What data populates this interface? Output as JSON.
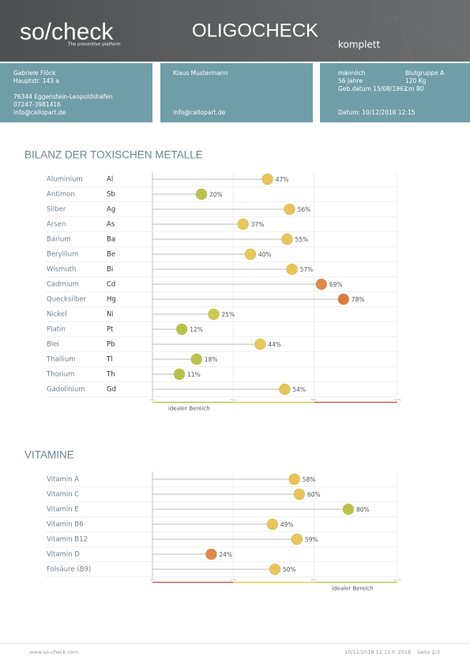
{
  "header": {
    "logo": "so/check",
    "tagline": "The preventive platform",
    "title": "OLIGOCHECK",
    "subtitle": "komplett"
  },
  "info": {
    "patient": [
      "Gabriele Flöck",
      "Hauptstr. 143 a",
      "76344 Eggenstein-Leopoldshafen",
      "07247-3981416",
      "info@cellopart.de"
    ],
    "therapist": [
      "Klaus Mustermann",
      "info@cellopart.de"
    ],
    "details": [
      "männlich",
      "56 Jahre",
      "Geb.datum 15/08/1962",
      "Datum: 10/12/2018 12:15"
    ],
    "details2": [
      "Blutgruppe A",
      "120 Kg",
      "cm 80"
    ]
  },
  "chart_data": [
    {
      "type": "lollipop",
      "title": "BILANZ DER TOXISCHEN METALLE",
      "categories": [
        "Aluminium",
        "Antimon",
        "Silber",
        "Arsen",
        "Barium",
        "Beryllium",
        "Wismuth",
        "Cadmium",
        "Quecksilber",
        "Nickel",
        "Platin",
        "Blei",
        "Thallium",
        "Thorium",
        "Gadolinium"
      ],
      "symbols": [
        "Al",
        "Sb",
        "Ag",
        "As",
        "Ba",
        "Be",
        "Bi",
        "Cd",
        "Hg",
        "Ni",
        "Pt",
        "Pb",
        "Tl",
        "Th",
        "Gd"
      ],
      "values": [
        47,
        20,
        56,
        37,
        55,
        40,
        57,
        69,
        78,
        25,
        12,
        44,
        18,
        11,
        54
      ],
      "value_labels": [
        "47%",
        "20%",
        "56%",
        "37%",
        "55%",
        "40%",
        "57%",
        "69%",
        "78%",
        "25%",
        "12%",
        "44%",
        "18%",
        "11%",
        "54%"
      ],
      "colors": [
        "#e8c45a",
        "#b9c24e",
        "#e8c45a",
        "#e6c95a",
        "#e8c45a",
        "#e6c95a",
        "#e8c45a",
        "#e0894c",
        "#dd7a45",
        "#cfc655",
        "#b5c04b",
        "#e6c95a",
        "#b9c24e",
        "#b5c04b",
        "#e8c45a"
      ],
      "xlim": [
        0,
        100
      ],
      "xticks": [
        {
          "value": 0,
          "label": "0%"
        },
        {
          "value": 33,
          "label": "33%"
        },
        {
          "value": 66,
          "label": "66%"
        },
        {
          "value": 100,
          "label": "100%"
        }
      ],
      "zone_colors": [
        "#a8c23a",
        "#e8c52e",
        "#d9473a"
      ],
      "range_label": "idealer Bereich"
    },
    {
      "type": "lollipop",
      "title": "VITAMINE",
      "categories": [
        "Vitamin A",
        "Vitamin C",
        "Vitamin E",
        "Vitamin B6",
        "Vitamin B12",
        "Vitamin D",
        "Folsäure (B9)"
      ],
      "values": [
        58,
        60,
        80,
        49,
        59,
        24,
        50
      ],
      "value_labels": [
        "58%",
        "60%",
        "80%",
        "49%",
        "59%",
        "24%",
        "50%"
      ],
      "colors": [
        "#e8c45a",
        "#e8c45a",
        "#bcc24e",
        "#e8c45a",
        "#e8c45a",
        "#e0894c",
        "#e8c45a"
      ],
      "xlim": [
        0,
        100
      ],
      "xticks": [
        {
          "value": 0,
          "label": "0%"
        },
        {
          "value": 33,
          "label": "33%"
        },
        {
          "value": 66,
          "label": "66%"
        },
        {
          "value": 100,
          "label": "100%"
        }
      ],
      "zone_colors": [
        "#d9473a",
        "#e8c52e",
        "#a8c23a"
      ],
      "range_label": "idealer Bereich"
    }
  ],
  "footer": {
    "url": "www.so-check.com",
    "date": "10/12/2018 12:15",
    "copyright": "© 2018",
    "page": "Seite 2/3"
  }
}
